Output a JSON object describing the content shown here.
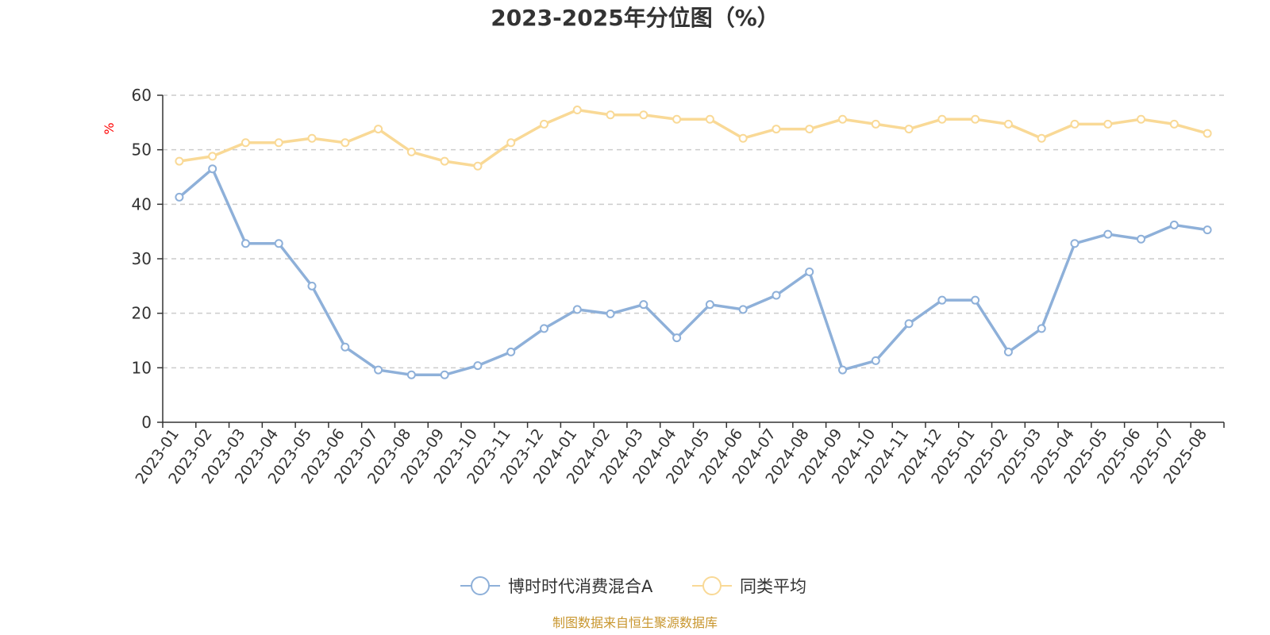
{
  "chart_data": {
    "type": "line",
    "title": "2023-2025年分位图（%）",
    "ylabel": "%",
    "xlabel": "",
    "ylim": [
      0,
      60
    ],
    "yticks": [
      0,
      10,
      20,
      30,
      40,
      50,
      60
    ],
    "grid": true,
    "legend_position": "bottom",
    "categories": [
      "2023-01",
      "2023-02",
      "2023-03",
      "2023-04",
      "2023-05",
      "2023-06",
      "2023-07",
      "2023-08",
      "2023-09",
      "2023-10",
      "2023-11",
      "2023-12",
      "2024-01",
      "2024-02",
      "2024-03",
      "2024-04",
      "2024-05",
      "2024-06",
      "2024-07",
      "2024-08",
      "2024-09",
      "2024-10",
      "2024-11",
      "2024-12",
      "2025-01",
      "2025-02",
      "2025-03",
      "2025-04",
      "2025-05",
      "2025-06",
      "2025-07",
      "2025-08"
    ],
    "series": [
      {
        "name": "博时时代消费混合A",
        "color": "#8eb0d9",
        "values": [
          41.3,
          46.5,
          32.8,
          32.8,
          25.0,
          13.8,
          9.6,
          8.7,
          8.7,
          10.4,
          12.9,
          17.2,
          20.7,
          19.9,
          21.6,
          15.5,
          21.6,
          20.7,
          23.3,
          27.6,
          9.6,
          11.3,
          18.1,
          22.4,
          22.4,
          12.9,
          17.2,
          32.8,
          34.5,
          33.6,
          36.2,
          35.3
        ]
      },
      {
        "name": "同类平均",
        "color": "#f9d996",
        "values": [
          47.9,
          48.8,
          51.3,
          51.3,
          52.1,
          51.3,
          53.8,
          49.6,
          47.9,
          47.0,
          51.3,
          54.7,
          57.3,
          56.4,
          56.4,
          55.6,
          55.6,
          52.1,
          53.8,
          53.8,
          55.6,
          54.7,
          53.8,
          55.6,
          55.6,
          54.7,
          52.1,
          54.7,
          54.7,
          55.6,
          54.7,
          53.0
        ]
      }
    ],
    "axis_color": "#333333",
    "grid_color": "#cccccc",
    "unit_color": "#ff0000"
  },
  "source": {
    "text": "制图数据来自恒生聚源数据库",
    "color": "#c8962e"
  }
}
